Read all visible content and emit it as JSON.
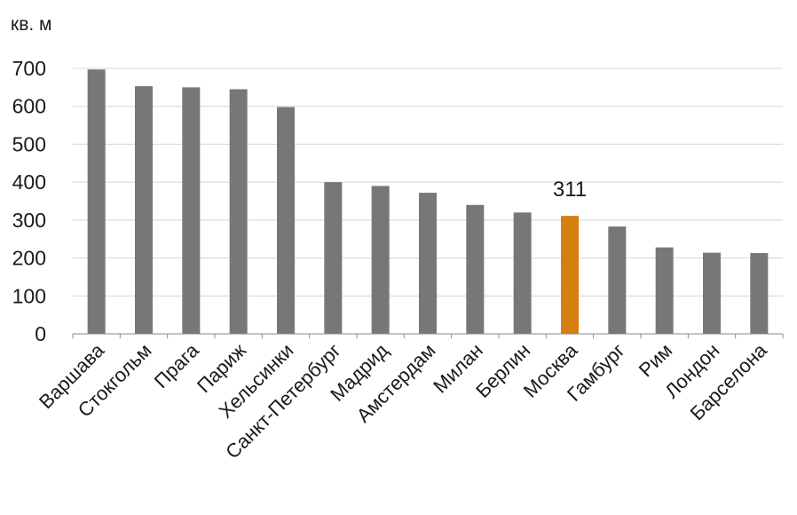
{
  "chart_data": {
    "type": "bar",
    "ylabel": "кв. м",
    "ylim": [
      0,
      700
    ],
    "yticks": [
      "0",
      "100",
      "200",
      "300",
      "400",
      "500",
      "600",
      "700"
    ],
    "grid": true,
    "categories": [
      "Варшава",
      "Стокгольм",
      "Прага",
      "Париж",
      "Хельсинки",
      "Санкт-Петербург",
      "Мадрид",
      "Амстердам",
      "Милан",
      "Берлин",
      "Москва",
      "Гамбург",
      "Рим",
      "Лондон",
      "Барселона"
    ],
    "values": [
      697,
      653,
      650,
      645,
      598,
      400,
      390,
      372,
      340,
      320,
      311,
      283,
      228,
      214,
      213
    ],
    "highlight_index": 10,
    "data_labels": {
      "10": "311"
    },
    "colors": {
      "bar": "#777777",
      "highlight": "#d47f10"
    }
  }
}
